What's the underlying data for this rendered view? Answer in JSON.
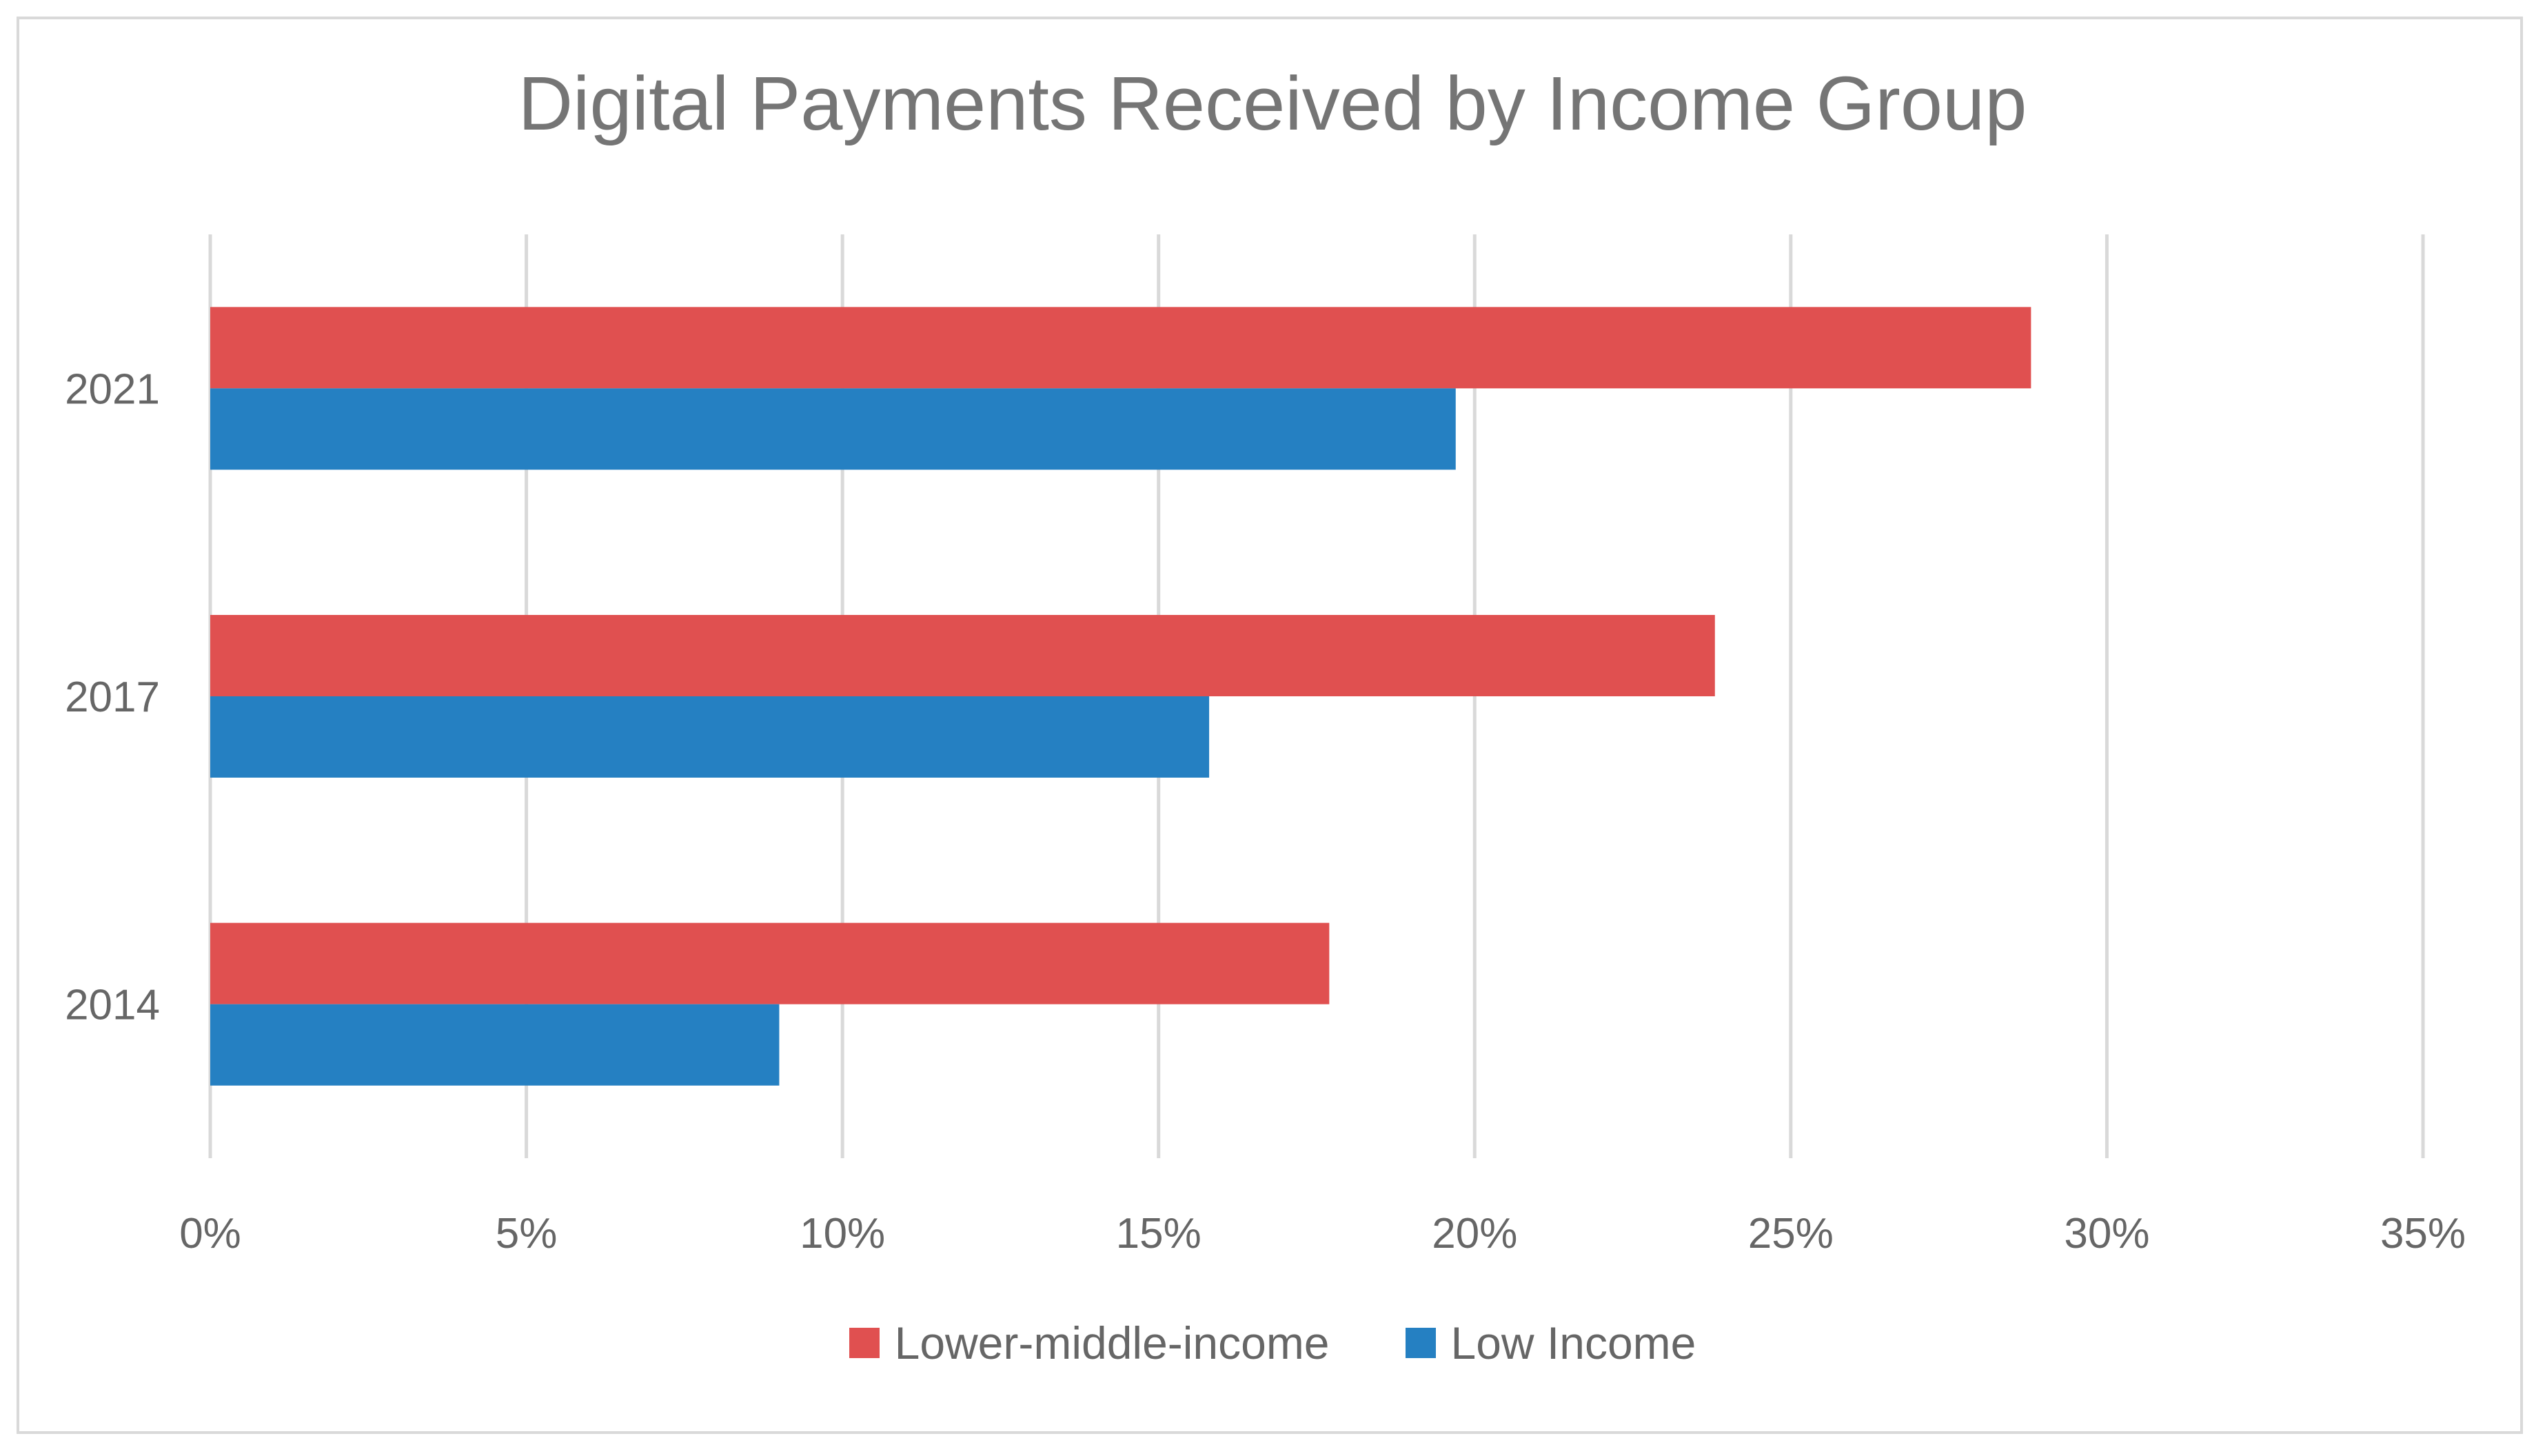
{
  "chart_data": {
    "type": "bar",
    "orientation": "horizontal",
    "title": "Digital Payments Received by Income Group",
    "xlabel": "",
    "ylabel": "",
    "categories": [
      "2021",
      "2017",
      "2014"
    ],
    "series": [
      {
        "name": "Lower-middle-income",
        "color": "#e05050",
        "values": [
          28.8,
          23.8,
          17.7
        ]
      },
      {
        "name": "Low Income",
        "color": "#2580c2",
        "values": [
          19.7,
          15.8,
          9.0
        ]
      }
    ],
    "xlim": [
      0,
      35
    ],
    "x_ticks": [
      0,
      5,
      10,
      15,
      20,
      25,
      30,
      35
    ],
    "x_tick_labels": [
      "0%",
      "5%",
      "10%",
      "15%",
      "20%",
      "25%",
      "30%",
      "35%"
    ],
    "grid": true,
    "legend_position": "bottom"
  }
}
